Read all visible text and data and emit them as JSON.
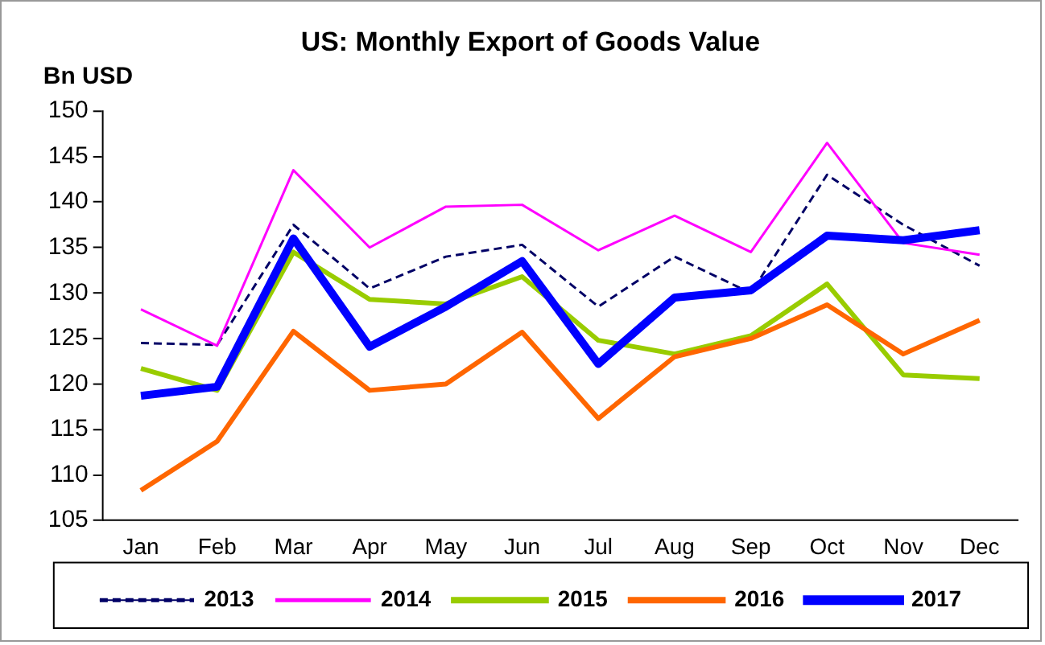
{
  "chart_data": {
    "type": "line",
    "title": "US: Monthly Export of Goods Value",
    "ylabel": "Bn USD",
    "categories": [
      "Jan",
      "Feb",
      "Mar",
      "Apr",
      "May",
      "Jun",
      "Jul",
      "Aug",
      "Sep",
      "Oct",
      "Nov",
      "Dec"
    ],
    "ylim": [
      105,
      150
    ],
    "yticks": [
      105,
      110,
      115,
      120,
      125,
      130,
      135,
      140,
      145,
      150
    ],
    "grid": false,
    "legend": "bottom",
    "marker": "none",
    "series": [
      {
        "name": "2013",
        "color": "#000066",
        "line_style": "dashed",
        "values": [
          124.5,
          124.3,
          137.5,
          130.5,
          134,
          135.3,
          128.5,
          134,
          130,
          143,
          137.5,
          133
        ]
      },
      {
        "name": "2014",
        "color": "#ff00ff",
        "values": [
          128.2,
          124.2,
          143.5,
          135,
          139.5,
          139.7,
          134.7,
          138.5,
          134.5,
          146.5,
          135.5,
          134.2
        ]
      },
      {
        "name": "2015",
        "color": "#99cc00",
        "values": [
          121.7,
          119.3,
          134.5,
          129.3,
          128.8,
          131.8,
          124.8,
          123.3,
          125.3,
          131,
          121,
          120.6
        ]
      },
      {
        "name": "2016",
        "color": "#ff6600",
        "values": [
          108.3,
          113.7,
          125.8,
          119.3,
          120,
          125.7,
          116.2,
          123,
          125,
          128.7,
          123.3,
          127
        ]
      },
      {
        "name": "2017",
        "color": "#0000ff",
        "values": [
          118.7,
          119.7,
          136,
          124.1,
          128.5,
          133.5,
          122.2,
          129.5,
          130.3,
          136.3,
          135.8,
          136.9
        ]
      }
    ]
  }
}
